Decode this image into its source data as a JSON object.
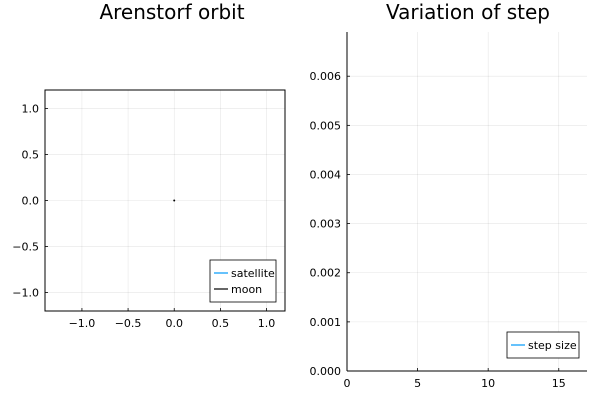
{
  "chart_data": [
    {
      "type": "line",
      "title": "Arenstorf orbit",
      "xlabel": "",
      "ylabel": "",
      "xlim": [
        -1.4,
        1.2
      ],
      "ylim": [
        -1.2,
        1.2
      ],
      "xticks": [
        -1.0,
        -0.5,
        0.0,
        0.5,
        1.0
      ],
      "xtick_labels": [
        "−1.0",
        "−0.5",
        "0.0",
        "0.5",
        "1.0"
      ],
      "yticks": [
        -1.0,
        -0.5,
        0.0,
        0.5,
        1.0
      ],
      "ytick_labels": [
        "−1.0",
        "−0.5",
        "0.0",
        "0.5",
        "1.0"
      ],
      "grid": true,
      "legend_position": "bottom-right",
      "series": [
        {
          "name": "satellite",
          "color": "#009AFA",
          "x": [],
          "y": []
        },
        {
          "name": "moon",
          "color": "#000000",
          "x": [
            0.0
          ],
          "y": [
            0.0
          ]
        }
      ]
    },
    {
      "type": "line",
      "title": "Variation of step",
      "xlabel": "",
      "ylabel": "",
      "xlim": [
        0,
        17
      ],
      "ylim": [
        0,
        0.0069
      ],
      "xticks": [
        0,
        5,
        10,
        15
      ],
      "xtick_labels": [
        "0",
        "5",
        "10",
        "15"
      ],
      "yticks": [
        0,
        0.001,
        0.002,
        0.003,
        0.004,
        0.005,
        0.006
      ],
      "ytick_labels": [
        "0.000",
        "0.001",
        "0.002",
        "0.003",
        "0.004",
        "0.005",
        "0.006"
      ],
      "grid": true,
      "legend_position": "bottom-right",
      "series": [
        {
          "name": "step size",
          "color": "#009AFA",
          "x": [],
          "y": []
        }
      ]
    }
  ]
}
